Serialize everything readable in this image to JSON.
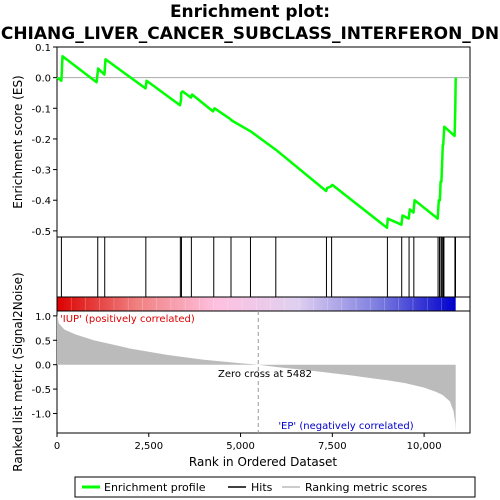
{
  "chart_data": {
    "type": "line",
    "title_line1": "Enrichment plot:",
    "title_line2": "CHIANG_LIVER_CANCER_SUBCLASS_INTERFERON_DN",
    "es_panel": {
      "ylabel": "Enrichment score (ES)",
      "ylim": [
        -0.52,
        0.1
      ],
      "yticks": [
        0.1,
        0.0,
        -0.1,
        -0.2,
        -0.3,
        -0.4,
        -0.5
      ],
      "ytick_labels": [
        "0.1",
        "0.0",
        "-0.1",
        "-0.2",
        "-0.3",
        "-0.4",
        "-0.5"
      ],
      "series": [
        {
          "name": "Enrichment profile",
          "color": "#00ff00",
          "x": [
            0,
            120,
            150,
            1080,
            1120,
            1290,
            1320,
            2410,
            2440,
            3350,
            3380,
            3380,
            3420,
            3650,
            3680,
            4250,
            4290,
            4720,
            4760,
            5270,
            5960,
            7330,
            7360,
            7460,
            7500,
            8990,
            9010,
            9380,
            9410,
            9580,
            9610,
            9710,
            9740,
            10370,
            10400,
            10430,
            10450,
            10470,
            10490,
            10510,
            10520,
            10550,
            10830,
            10850,
            10860
          ],
          "y": [
            0.0,
            -0.01,
            0.07,
            -0.015,
            0.03,
            0.01,
            0.06,
            -0.035,
            -0.01,
            -0.09,
            -0.07,
            -0.05,
            -0.045,
            -0.065,
            -0.055,
            -0.11,
            -0.1,
            -0.135,
            -0.14,
            -0.175,
            -0.235,
            -0.37,
            -0.36,
            -0.355,
            -0.35,
            -0.49,
            -0.46,
            -0.48,
            -0.45,
            -0.46,
            -0.43,
            -0.44,
            -0.4,
            -0.46,
            -0.4,
            -0.4,
            -0.34,
            -0.34,
            -0.28,
            -0.22,
            -0.22,
            -0.16,
            -0.19,
            -0.1,
            0.0
          ]
        }
      ]
    },
    "hits_panel": {
      "series_name": "Hits",
      "hit_positions": [
        120,
        1110,
        1300,
        2420,
        3360,
        3390,
        3660,
        4270,
        4740,
        5270,
        5960,
        7340,
        7480,
        9000,
        9390,
        9590,
        9720,
        10380,
        10420,
        10460,
        10490,
        10520,
        10540,
        10840,
        10855
      ],
      "gradient_colors": [
        "#dd0000",
        "#f08080",
        "#ffc0e0",
        "#e0d0f0",
        "#8080e0",
        "#0000cc"
      ]
    },
    "metric_panel": {
      "series_name": "Ranking metric scores",
      "ylabel": "Ranked list metric (Signal2Noise)",
      "ylim": [
        -1.4,
        1.1
      ],
      "yticks": [
        1.0,
        0.5,
        0.0,
        -0.5,
        -1.0
      ],
      "ytick_labels": [
        "1.0",
        "0.5",
        "0.0",
        "-0.5",
        "-1.0"
      ],
      "fill_color": "#bbbbbb",
      "x": [
        0,
        50,
        200,
        500,
        1000,
        2000,
        3000,
        4000,
        5000,
        5482,
        6000,
        7000,
        8000,
        9000,
        9500,
        10000,
        10300,
        10500,
        10700,
        10800,
        10850,
        10860
      ],
      "y": [
        1.02,
        0.85,
        0.72,
        0.62,
        0.5,
        0.33,
        0.2,
        0.1,
        0.03,
        0.0,
        -0.05,
        -0.13,
        -0.22,
        -0.32,
        -0.38,
        -0.47,
        -0.55,
        -0.62,
        -0.75,
        -0.95,
        -1.2,
        -1.38
      ],
      "zero_cross_label": "Zero cross at 5482",
      "zero_cross": 5482,
      "pos_label": "'IUP' (positively correlated)",
      "neg_label": "'EP' (negatively correlated)"
    },
    "xlabel": "Rank in Ordered Dataset",
    "xlim": [
      0,
      11250
    ],
    "xticks": [
      0,
      2500,
      5000,
      7500,
      10000
    ],
    "xtick_labels": [
      "0",
      "2,500",
      "5,000",
      "7,500",
      "10,000"
    ],
    "legend": {
      "placement": "bottom",
      "items": [
        {
          "label": "Enrichment profile",
          "color": "#00ff00"
        },
        {
          "label": "Hits",
          "color": "#000000"
        },
        {
          "label": "Ranking metric scores",
          "color": "#bbbbbb"
        }
      ]
    },
    "grid": false
  }
}
